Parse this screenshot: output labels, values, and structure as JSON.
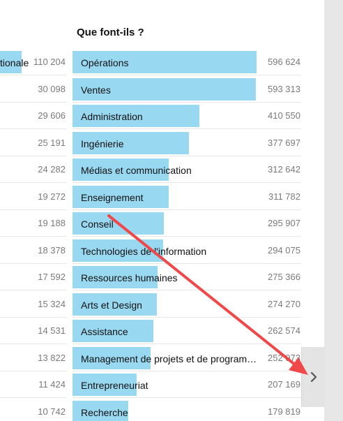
{
  "left_column": {
    "items": [
      {
        "label": "tionale",
        "value": "110 204"
      },
      {
        "label": "",
        "value": "30 098"
      },
      {
        "label": "",
        "value": "29 606"
      },
      {
        "label": "",
        "value": "25 191"
      },
      {
        "label": "",
        "value": "24 282"
      },
      {
        "label": "",
        "value": "19 272"
      },
      {
        "label": "",
        "value": "19 188"
      },
      {
        "label": "",
        "value": "18 378"
      },
      {
        "label": "",
        "value": "17 592"
      },
      {
        "label": "",
        "value": "15 324"
      },
      {
        "label": "",
        "value": "14 531"
      },
      {
        "label": "",
        "value": "13 822"
      },
      {
        "label": "",
        "value": "11 424"
      },
      {
        "label": "",
        "value": "10 742"
      }
    ]
  },
  "main_column": {
    "title": "Que font-ils ?",
    "max_value": 596624,
    "items": [
      {
        "label": "Opérations",
        "value": "596 624",
        "number": 596624
      },
      {
        "label": "Ventes",
        "value": "593 313",
        "number": 593313
      },
      {
        "label": "Administration",
        "value": "410 550",
        "number": 410550
      },
      {
        "label": "Ingénierie",
        "value": "377 697",
        "number": 377697
      },
      {
        "label": "Médias et communication",
        "value": "312 642",
        "number": 312642
      },
      {
        "label": "Enseignement",
        "value": "311 782",
        "number": 311782
      },
      {
        "label": "Conseil",
        "value": "295 907",
        "number": 295907
      },
      {
        "label": "Technologies de l'information",
        "value": "294 075",
        "number": 294075
      },
      {
        "label": "Ressources humaines",
        "value": "275 366",
        "number": 275366
      },
      {
        "label": "Arts et Design",
        "value": "274 270",
        "number": 274270
      },
      {
        "label": "Assistance",
        "value": "262 574",
        "number": 262574
      },
      {
        "label": "Management de projets et de programmes",
        "value": "252 973",
        "number": 252973
      },
      {
        "label": "Entrepreneuriat",
        "value": "207 169",
        "number": 207169
      },
      {
        "label": "Recherche",
        "value": "179 819",
        "number": 179819
      }
    ]
  },
  "next_button": {
    "icon": "chevron-right-icon"
  },
  "annotation": {
    "icon": "red-arrow-annotation",
    "color": "#f04848"
  },
  "colors": {
    "bar": "#98d8f0",
    "value_text": "#7a7a7a",
    "gutter": "#e7e7e7"
  }
}
